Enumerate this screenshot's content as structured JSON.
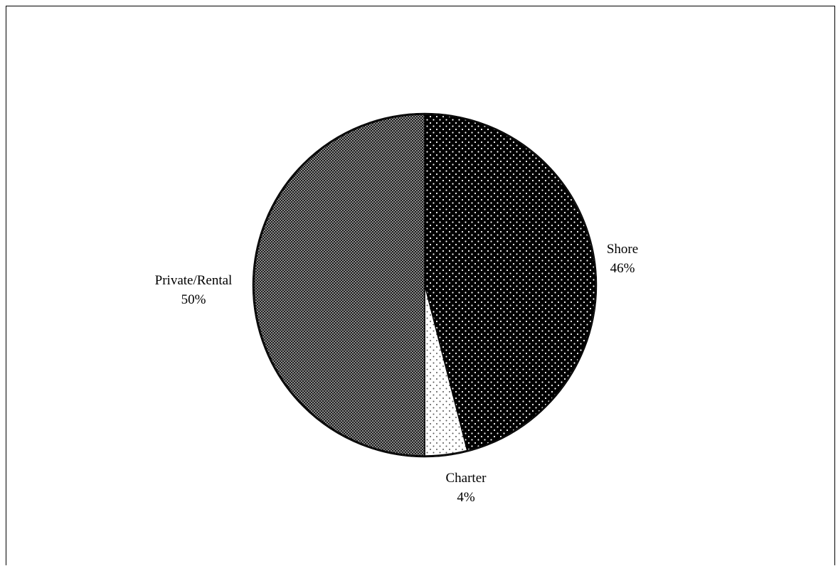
{
  "chart_data": {
    "type": "pie",
    "title": "",
    "slices": [
      {
        "label": "Shore",
        "value": 46,
        "percent_label": "46%",
        "pattern": "dots-white-on-black"
      },
      {
        "label": "Charter",
        "value": 4,
        "percent_label": "4%",
        "pattern": "dots-black-on-white"
      },
      {
        "label": "Private/Rental",
        "value": 50,
        "percent_label": "50%",
        "pattern": "checker-fine"
      }
    ],
    "start": "12 o'clock",
    "direction": "clockwise",
    "legend": "none",
    "data_labels": "category and percent outside slices"
  }
}
